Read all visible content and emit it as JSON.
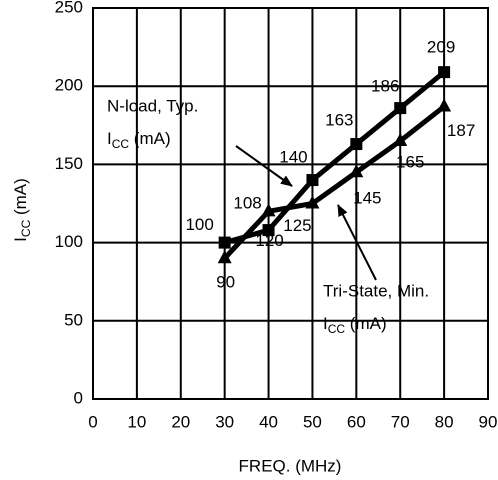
{
  "chart_data": {
    "type": "line",
    "xlabel": "FREQ. (MHz)",
    "ylabel": {
      "main": "I",
      "sub": "CC",
      "rest": " (mA)"
    },
    "x": [
      30,
      40,
      50,
      60,
      70,
      80
    ],
    "series": [
      {
        "name": "N-load, Typ.",
        "unit": {
          "main": "I",
          "sub": "CC",
          "rest": " (mA)"
        },
        "color": "#000000",
        "marker": "square",
        "values": [
          100,
          108,
          140,
          163,
          186,
          209
        ]
      },
      {
        "name": "Tri-State, Min.",
        "unit": {
          "main": "I",
          "sub": "CC",
          "rest": " (mA)"
        },
        "color": "#000000",
        "marker": "triangle",
        "values": [
          90,
          120,
          125,
          145,
          165,
          187
        ]
      }
    ],
    "xlim": [
      0,
      90
    ],
    "xticks": [
      0,
      10,
      20,
      30,
      40,
      50,
      60,
      70,
      80,
      90
    ],
    "ylim": [
      0,
      250
    ],
    "yticks": [
      0,
      50,
      100,
      150,
      200,
      250
    ],
    "grid": true
  }
}
